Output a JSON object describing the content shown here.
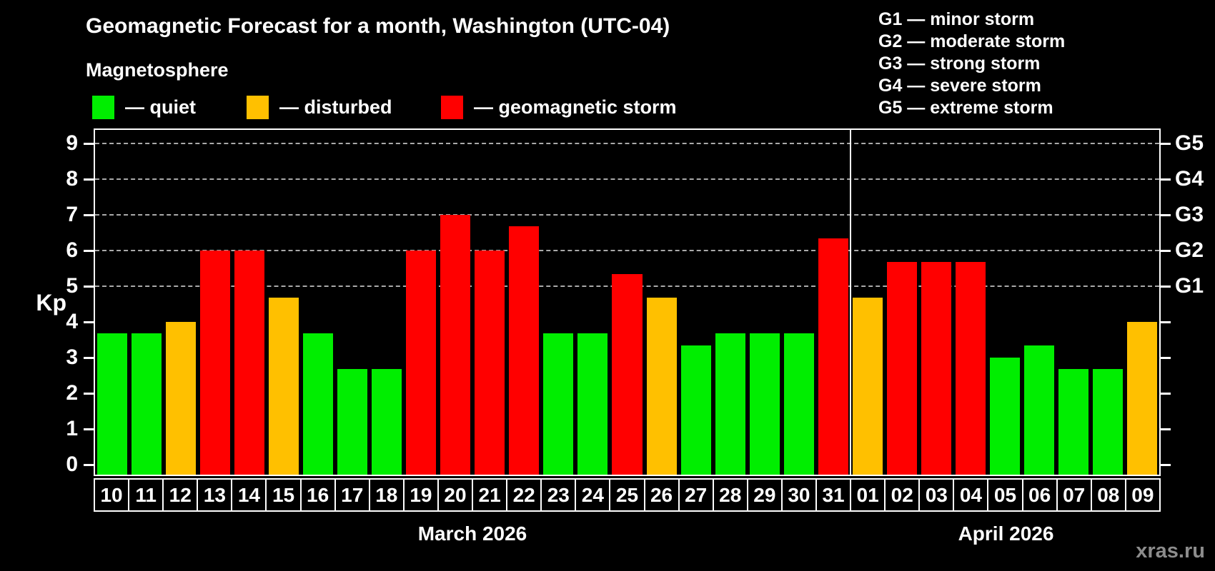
{
  "header": {
    "title": "Geomagnetic Forecast for a month, Washington (UTC-04)",
    "subtitle": "Magnetosphere",
    "legend": [
      {
        "key": "quiet",
        "label": "— quiet",
        "color": "#00ee00"
      },
      {
        "key": "disturbed",
        "label": "— disturbed",
        "color": "#ffc000"
      },
      {
        "key": "storm",
        "label": "— geomagnetic storm",
        "color": "#ff0000"
      }
    ],
    "g_scale_legend": [
      "G1 — minor storm",
      "G2 — moderate storm",
      "G3 — strong storm",
      "G4 — severe storm",
      "G5 — extreme storm"
    ]
  },
  "watermark": "xras.ru",
  "chart_data": {
    "type": "bar",
    "title": "Geomagnetic Forecast for a month, Washington (UTC-04)",
    "ylabel": "Kp",
    "ylim": [
      0,
      9
    ],
    "yticks": [
      0,
      1,
      2,
      3,
      4,
      5,
      6,
      7,
      8,
      9
    ],
    "gridlines_at_kp": [
      5,
      6,
      7,
      8,
      9
    ],
    "grid": "dashed-horizontal",
    "legend_position": "top-left",
    "right_axis": [
      {
        "kp": 5,
        "label": "G1"
      },
      {
        "kp": 6,
        "label": "G2"
      },
      {
        "kp": 7,
        "label": "G3"
      },
      {
        "kp": 8,
        "label": "G4"
      },
      {
        "kp": 9,
        "label": "G5"
      }
    ],
    "months": [
      {
        "label": "March 2026",
        "num_days": 22
      },
      {
        "label": "April 2026",
        "num_days": 9
      }
    ],
    "colors": {
      "quiet": "#00ee00",
      "disturbed": "#ffc000",
      "storm": "#ff0000"
    },
    "bars": [
      {
        "day": "10",
        "value": 3.67,
        "status": "quiet"
      },
      {
        "day": "11",
        "value": 3.67,
        "status": "quiet"
      },
      {
        "day": "12",
        "value": 4.0,
        "status": "disturbed"
      },
      {
        "day": "13",
        "value": 6.0,
        "status": "storm"
      },
      {
        "day": "14",
        "value": 6.0,
        "status": "storm"
      },
      {
        "day": "15",
        "value": 4.67,
        "status": "disturbed"
      },
      {
        "day": "16",
        "value": 3.67,
        "status": "quiet"
      },
      {
        "day": "17",
        "value": 2.67,
        "status": "quiet"
      },
      {
        "day": "18",
        "value": 2.67,
        "status": "quiet"
      },
      {
        "day": "19",
        "value": 6.0,
        "status": "storm"
      },
      {
        "day": "20",
        "value": 7.0,
        "status": "storm"
      },
      {
        "day": "21",
        "value": 6.0,
        "status": "storm"
      },
      {
        "day": "22",
        "value": 6.67,
        "status": "storm"
      },
      {
        "day": "23",
        "value": 3.67,
        "status": "quiet"
      },
      {
        "day": "24",
        "value": 3.67,
        "status": "quiet"
      },
      {
        "day": "25",
        "value": 5.33,
        "status": "storm"
      },
      {
        "day": "26",
        "value": 4.67,
        "status": "disturbed"
      },
      {
        "day": "27",
        "value": 3.33,
        "status": "quiet"
      },
      {
        "day": "28",
        "value": 3.67,
        "status": "quiet"
      },
      {
        "day": "29",
        "value": 3.67,
        "status": "quiet"
      },
      {
        "day": "30",
        "value": 3.67,
        "status": "quiet"
      },
      {
        "day": "31",
        "value": 6.33,
        "status": "storm"
      },
      {
        "day": "01",
        "value": 4.67,
        "status": "disturbed"
      },
      {
        "day": "02",
        "value": 5.67,
        "status": "storm"
      },
      {
        "day": "03",
        "value": 5.67,
        "status": "storm"
      },
      {
        "day": "04",
        "value": 5.67,
        "status": "storm"
      },
      {
        "day": "05",
        "value": 3.0,
        "status": "quiet"
      },
      {
        "day": "06",
        "value": 3.33,
        "status": "quiet"
      },
      {
        "day": "07",
        "value": 2.67,
        "status": "quiet"
      },
      {
        "day": "08",
        "value": 2.67,
        "status": "quiet"
      },
      {
        "day": "09",
        "value": 4.0,
        "status": "disturbed"
      }
    ]
  }
}
